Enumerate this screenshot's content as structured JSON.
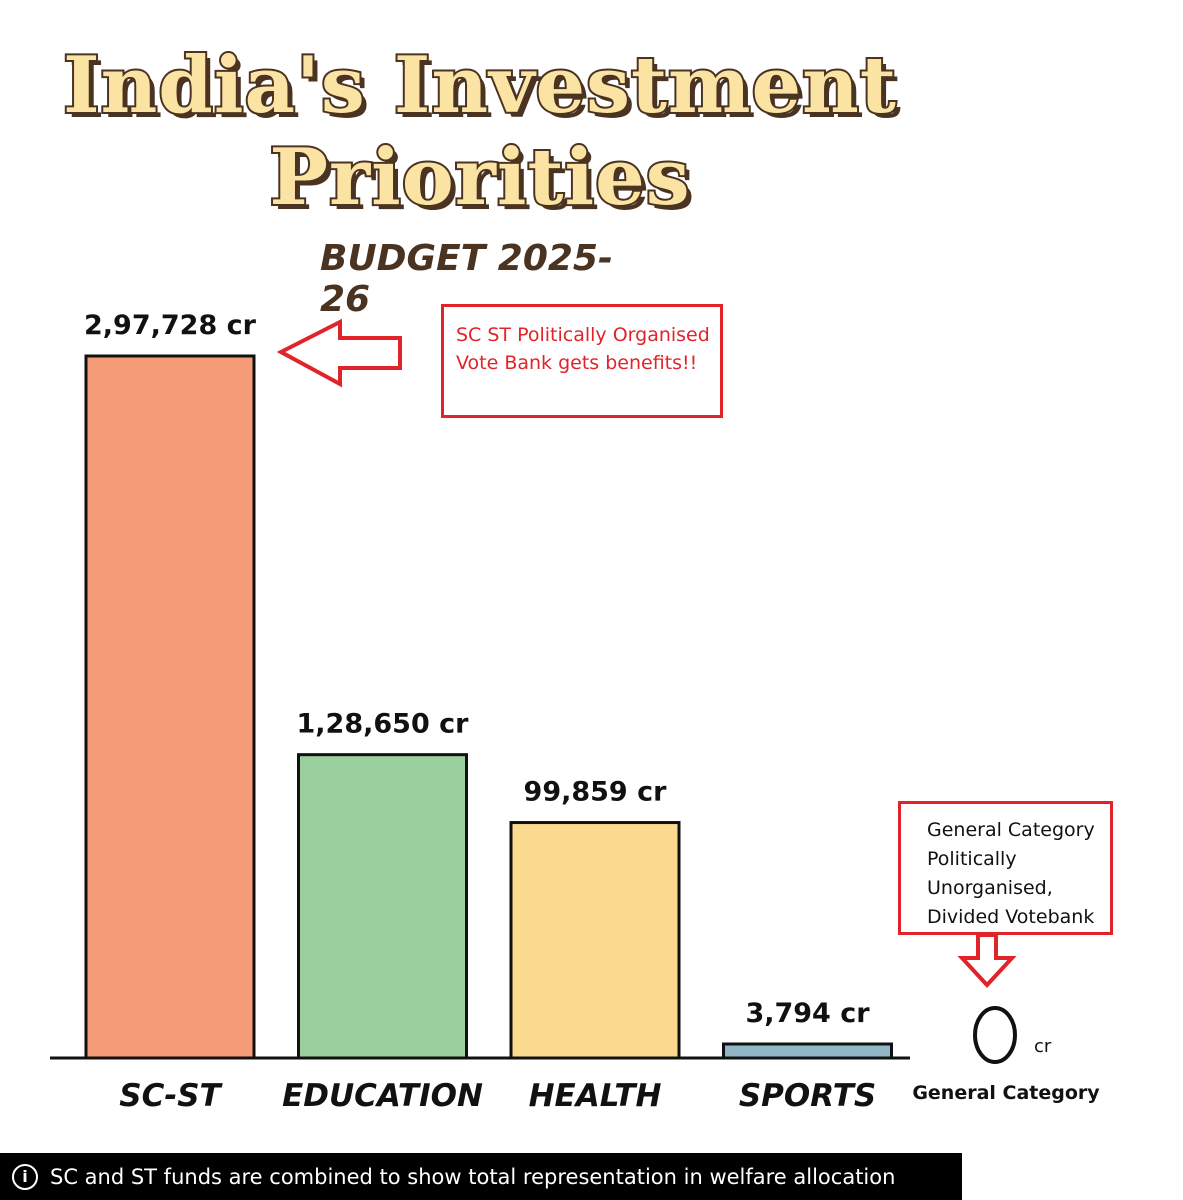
{
  "title_lines": [
    "India's Investment",
    "Priorities"
  ],
  "subtitle": "BUDGET 2025-26",
  "chart_data": {
    "type": "bar",
    "categories": [
      "SC-ST",
      "EDUCATION",
      "HEALTH",
      "SPORTS"
    ],
    "values": [
      297728,
      128650,
      99859,
      3794
    ],
    "value_labels": [
      "2,97,728 cr",
      "1,28,650 cr",
      "99,859 cr",
      "3,794 cr"
    ],
    "colors": [
      "#f59b78",
      "#9ccf9e",
      "#fbd98e",
      "#8fb7c8"
    ],
    "unit": "cr",
    "extra_category": {
      "label": "General Category",
      "value": 0,
      "value_label": "0",
      "unit": "cr"
    },
    "ylim": [
      0,
      297728
    ],
    "grid": false
  },
  "annotations": {
    "top": "SC ST Politically Organised Vote Bank gets benefits!!",
    "general": "General Category Politically Unorganised, Divided Votebank"
  },
  "footer": {
    "icon": "info-icon",
    "text": "SC and ST funds are combined to show total representation in welfare allocation"
  },
  "colors": {
    "title_fill": "#fbe3a4",
    "title_outline": "#4a3320",
    "annotation_red": "#e0242a",
    "footer_bg": "#000000"
  }
}
